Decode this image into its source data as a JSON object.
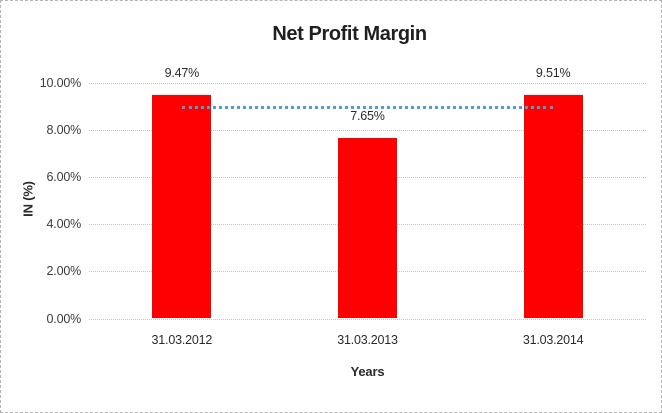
{
  "chart_data": {
    "type": "bar",
    "title": "Net Profit Margin",
    "xlabel": "Years",
    "ylabel": "IN (%)",
    "categories": [
      "31.03.2012",
      "31.03.2013",
      "31.03.2014"
    ],
    "values": [
      9.47,
      7.65,
      9.51
    ],
    "data_labels": [
      "9.47%",
      "7.65%",
      "9.51%"
    ],
    "ylim": [
      0,
      10
    ],
    "ytick_step": 2,
    "ytick_labels": [
      "0.00%",
      "2.00%",
      "4.00%",
      "6.00%",
      "8.00%",
      "10.00%"
    ],
    "grid": "horizontal dotted gridlines at each y tick",
    "legend": "none",
    "bar_color": "#ff0000",
    "gridline_color": "#c6c6c6",
    "trendline": {
      "style": "dotted",
      "color": "#4f9fc9",
      "start_value": 8.95,
      "end_value": 8.95,
      "spans": "center of first bar to center of last bar"
    }
  }
}
